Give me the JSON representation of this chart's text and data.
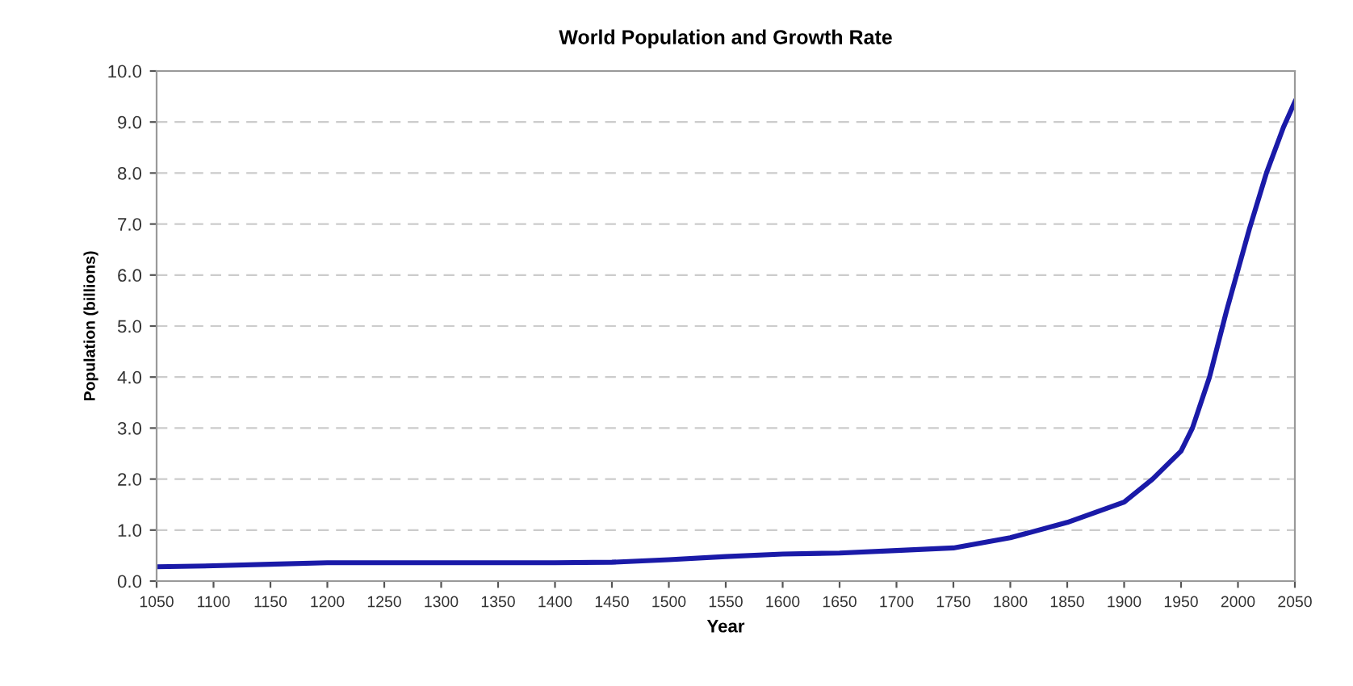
{
  "chart_data": {
    "type": "line",
    "title": "World Population and Growth Rate",
    "xlabel": "Year",
    "ylabel": "Population (billions)",
    "x": [
      1050,
      1100,
      1150,
      1200,
      1250,
      1300,
      1350,
      1400,
      1450,
      1500,
      1550,
      1600,
      1650,
      1700,
      1750,
      1800,
      1850,
      1900,
      1925,
      1950,
      1960,
      1975,
      1990,
      2000,
      2010,
      2025,
      2040,
      2050
    ],
    "series": [
      {
        "color": "#1a1aa8",
        "values": [
          0.28,
          0.3,
          0.33,
          0.36,
          0.36,
          0.36,
          0.36,
          0.36,
          0.37,
          0.42,
          0.48,
          0.53,
          0.55,
          0.6,
          0.65,
          0.85,
          1.15,
          1.55,
          2.0,
          2.55,
          3.0,
          4.0,
          5.3,
          6.1,
          6.9,
          8.0,
          8.9,
          9.4
        ]
      }
    ],
    "xlim": [
      1050,
      2050
    ],
    "xticks": [
      1050,
      1100,
      1150,
      1200,
      1250,
      1300,
      1350,
      1400,
      1450,
      1500,
      1550,
      1600,
      1650,
      1700,
      1750,
      1800,
      1850,
      1900,
      1950,
      2000,
      2050
    ],
    "ylim": [
      0,
      10
    ],
    "yticks": [
      {
        "value": 0,
        "label": "0.0"
      },
      {
        "value": 1,
        "label": "1.0"
      },
      {
        "value": 2,
        "label": "2.0"
      },
      {
        "value": 3,
        "label": "3.0"
      },
      {
        "value": 4,
        "label": "4.0"
      },
      {
        "value": 5,
        "label": "5.0"
      },
      {
        "value": 6,
        "label": "6.0"
      },
      {
        "value": 7,
        "label": "7.0"
      },
      {
        "value": 8,
        "label": "8.0"
      },
      {
        "value": 9,
        "label": "9.0"
      },
      {
        "value": 10,
        "label": "10.0"
      }
    ],
    "grid": "y",
    "line_style": "solid"
  }
}
